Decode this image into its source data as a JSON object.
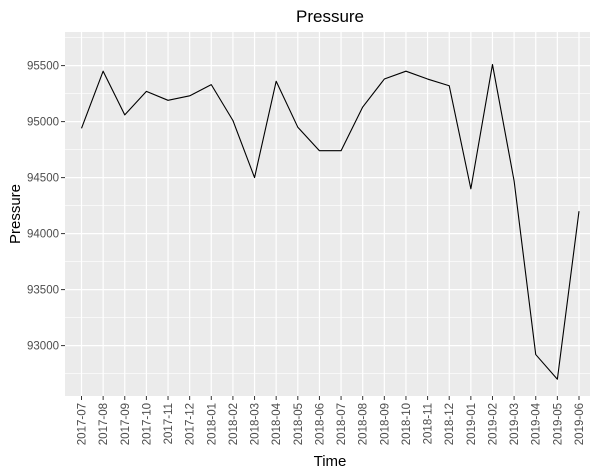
{
  "chart_data": {
    "type": "line",
    "title": "Pressure",
    "xlabel": "Time",
    "ylabel": "Pressure",
    "ylim": [
      92550,
      95800
    ],
    "yticks": [
      93000,
      93500,
      94000,
      94500,
      95000,
      95500
    ],
    "grid": true,
    "legend": "none",
    "line_color": "#000000",
    "panel_color": "#ebebeb",
    "grid_color": "#ffffff",
    "series": [
      {
        "values": [
          94940,
          95450,
          95060,
          95270,
          95190,
          95230,
          95330,
          95010,
          94500,
          95360,
          94950,
          94740,
          94740,
          95130,
          95380,
          95450,
          95380,
          95320,
          94400,
          95510,
          94470,
          92920,
          92700,
          94200
        ]
      }
    ],
    "categories": [
      "2017-07",
      "2017-08",
      "2017-09",
      "2017-10",
      "2017-11",
      "2017-12",
      "2018-01",
      "2018-02",
      "2018-03",
      "2018-04",
      "2018-05",
      "2018-06",
      "2018-07",
      "2018-08",
      "2018-09",
      "2018-10",
      "2018-11",
      "2018-12",
      "2019-01",
      "2019-02",
      "2019-03",
      "2019-04",
      "2019-05",
      "2019-06"
    ]
  }
}
